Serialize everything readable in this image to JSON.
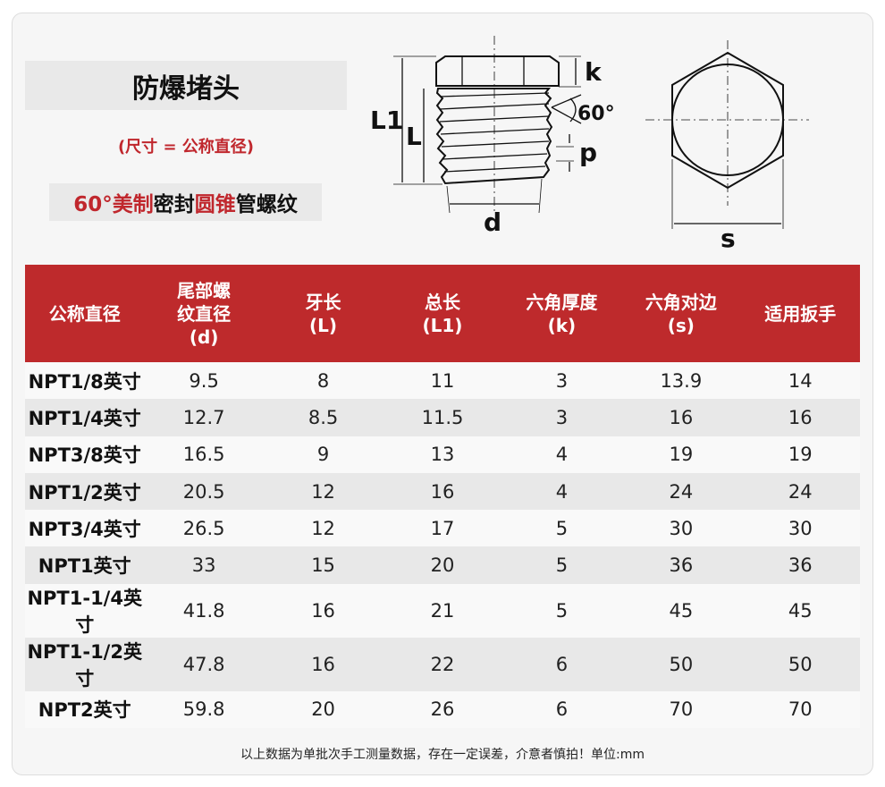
{
  "title": "防爆堵头",
  "subtitle": "(尺寸 = 公称直径)",
  "thread_parts": [
    {
      "text": "60°美制",
      "red": true
    },
    {
      "text": "密封",
      "red": false
    },
    {
      "text": "圆锥",
      "red": true
    },
    {
      "text": "管螺纹",
      "red": false
    }
  ],
  "diagram": {
    "labels": {
      "L1": "L1",
      "L": "L",
      "k": "k",
      "angle": "60°",
      "p": "p",
      "d": "d",
      "s": "s"
    }
  },
  "colors": {
    "accent": "#be2a2c",
    "row_alt": "#e8e8e8"
  },
  "table": {
    "headers": [
      "公称直径",
      "尾部螺\n纹直径\n(d)",
      "牙长\n(L)",
      "总长\n(L1)",
      "六角厚度\n(k)",
      "六角对边\n(s)",
      "适用扳手"
    ],
    "rows": [
      [
        "NPT1/8英寸",
        "9.5",
        "8",
        "11",
        "3",
        "13.9",
        "14"
      ],
      [
        "NPT1/4英寸",
        "12.7",
        "8.5",
        "11.5",
        "3",
        "16",
        "16"
      ],
      [
        "NPT3/8英寸",
        "16.5",
        "9",
        "13",
        "4",
        "19",
        "19"
      ],
      [
        "NPT1/2英寸",
        "20.5",
        "12",
        "16",
        "4",
        "24",
        "24"
      ],
      [
        "NPT3/4英寸",
        "26.5",
        "12",
        "17",
        "5",
        "30",
        "30"
      ],
      [
        "NPT1英寸",
        "33",
        "15",
        "20",
        "5",
        "36",
        "36"
      ],
      [
        "NPT1-1/4英寸",
        "41.8",
        "16",
        "21",
        "5",
        "45",
        "45"
      ],
      [
        "NPT1-1/2英寸",
        "47.8",
        "16",
        "22",
        "6",
        "50",
        "50"
      ],
      [
        "NPT2英寸",
        "59.8",
        "20",
        "26",
        "6",
        "70",
        "70"
      ]
    ]
  },
  "footer": "以上数据为单批次手工测量数据，存在一定误差，介意者慎拍！单位:mm"
}
